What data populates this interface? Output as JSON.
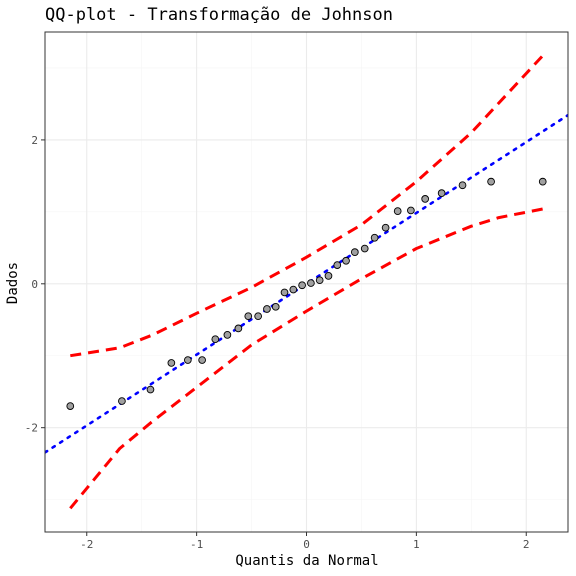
{
  "chart_data": {
    "type": "scatter",
    "title": "QQ-plot - Transformação de Johnson",
    "xlabel": "Quantis da Normal",
    "ylabel": "Dados",
    "xlim": [
      -2.38,
      2.38
    ],
    "ylim": [
      -3.45,
      3.5
    ],
    "x_ticks": [
      -2,
      -1,
      0,
      1,
      2
    ],
    "y_ticks": [
      -2,
      0,
      2
    ],
    "grid": true,
    "colors": {
      "points_fill": "#a0a0a0",
      "points_stroke": "#000000",
      "reference_line": "#0000ff",
      "envelope": "#ff0000",
      "grid_major": "#ebebeb",
      "grid_minor": "#f5f5f5",
      "panel_border": "#333333"
    },
    "points": [
      {
        "x": -2.15,
        "y": -1.7
      },
      {
        "x": -1.68,
        "y": -1.63
      },
      {
        "x": -1.42,
        "y": -1.47
      },
      {
        "x": -1.23,
        "y": -1.1
      },
      {
        "x": -1.08,
        "y": -1.06
      },
      {
        "x": -0.95,
        "y": -1.06
      },
      {
        "x": -0.83,
        "y": -0.77
      },
      {
        "x": -0.72,
        "y": -0.71
      },
      {
        "x": -0.62,
        "y": -0.62
      },
      {
        "x": -0.53,
        "y": -0.45
      },
      {
        "x": -0.44,
        "y": -0.45
      },
      {
        "x": -0.36,
        "y": -0.35
      },
      {
        "x": -0.28,
        "y": -0.32
      },
      {
        "x": -0.2,
        "y": -0.12
      },
      {
        "x": -0.12,
        "y": -0.08
      },
      {
        "x": -0.04,
        "y": -0.02
      },
      {
        "x": 0.04,
        "y": 0.01
      },
      {
        "x": 0.12,
        "y": 0.05
      },
      {
        "x": 0.2,
        "y": 0.11
      },
      {
        "x": 0.28,
        "y": 0.26
      },
      {
        "x": 0.36,
        "y": 0.32
      },
      {
        "x": 0.44,
        "y": 0.44
      },
      {
        "x": 0.53,
        "y": 0.49
      },
      {
        "x": 0.62,
        "y": 0.64
      },
      {
        "x": 0.72,
        "y": 0.78
      },
      {
        "x": 0.83,
        "y": 1.01
      },
      {
        "x": 0.95,
        "y": 1.02
      },
      {
        "x": 1.08,
        "y": 1.18
      },
      {
        "x": 1.23,
        "y": 1.26
      },
      {
        "x": 1.42,
        "y": 1.37
      },
      {
        "x": 1.68,
        "y": 1.42
      },
      {
        "x": 2.15,
        "y": 1.42
      }
    ],
    "reference_line": {
      "intercept": 0.0,
      "slope": 0.985
    },
    "envelope_upper": [
      {
        "x": -2.15,
        "y": -1.0
      },
      {
        "x": -1.7,
        "y": -0.89
      },
      {
        "x": -1.4,
        "y": -0.71
      },
      {
        "x": -1.0,
        "y": -0.41
      },
      {
        "x": -0.5,
        "y": -0.05
      },
      {
        "x": 0.0,
        "y": 0.37
      },
      {
        "x": 0.5,
        "y": 0.82
      },
      {
        "x": 1.0,
        "y": 1.42
      },
      {
        "x": 1.5,
        "y": 2.1
      },
      {
        "x": 2.15,
        "y": 3.17
      }
    ],
    "envelope_lower": [
      {
        "x": -2.15,
        "y": -3.12
      },
      {
        "x": -1.7,
        "y": -2.29
      },
      {
        "x": -1.4,
        "y": -1.91
      },
      {
        "x": -1.0,
        "y": -1.44
      },
      {
        "x": -0.5,
        "y": -0.85
      },
      {
        "x": 0.0,
        "y": -0.38
      },
      {
        "x": 0.5,
        "y": 0.07
      },
      {
        "x": 1.0,
        "y": 0.49
      },
      {
        "x": 1.5,
        "y": 0.8
      },
      {
        "x": 1.75,
        "y": 0.92
      },
      {
        "x": 2.15,
        "y": 1.04
      }
    ]
  }
}
